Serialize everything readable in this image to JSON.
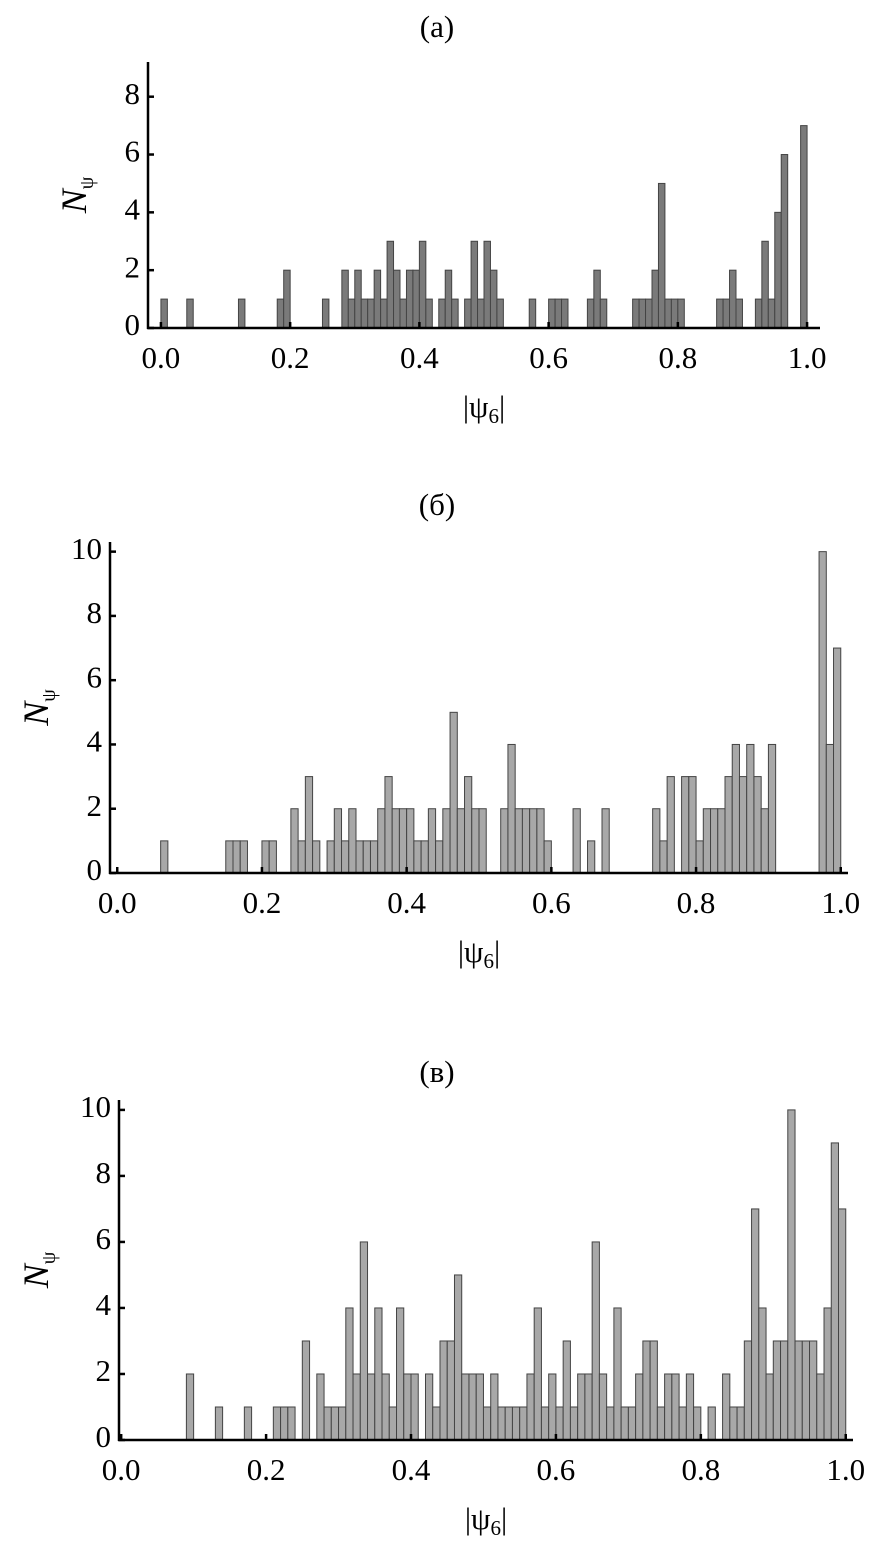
{
  "chart_data": [
    {
      "type": "histogram",
      "title": "(a)",
      "xlabel": "|ψ6|",
      "ylabel": {
        "main": "N",
        "sub": "ψ"
      },
      "color": "#7a7a7a",
      "bins": [
        0,
        0.01,
        0.02,
        0.03,
        0.04,
        0.05,
        0.06,
        0.07,
        0.08,
        0.09,
        0.1,
        0.11,
        0.12,
        0.13,
        0.14,
        0.15,
        0.16,
        0.17,
        0.18,
        0.19,
        0.2,
        0.21,
        0.22,
        0.23,
        0.24,
        0.25,
        0.26,
        0.27,
        0.28,
        0.29,
        0.3,
        0.31,
        0.32,
        0.33,
        0.34,
        0.35,
        0.36,
        0.37,
        0.38,
        0.39,
        0.4,
        0.41,
        0.42,
        0.43,
        0.44,
        0.45,
        0.46,
        0.47,
        0.48,
        0.49,
        0.5,
        0.51,
        0.52,
        0.53,
        0.54,
        0.55,
        0.56,
        0.57,
        0.58,
        0.59,
        0.6,
        0.61,
        0.62,
        0.63,
        0.64,
        0.65,
        0.66,
        0.67,
        0.68,
        0.69,
        0.7,
        0.71,
        0.72,
        0.73,
        0.74,
        0.75,
        0.76,
        0.77,
        0.78,
        0.79,
        0.8,
        0.81,
        0.82,
        0.83,
        0.84,
        0.85,
        0.86,
        0.87,
        0.88,
        0.89,
        0.9,
        0.91,
        0.92,
        0.93,
        0.94,
        0.95,
        0.96,
        0.97,
        0.98,
        0.99,
        1
      ],
      "values": [
        1,
        0,
        0,
        0,
        1,
        0,
        0,
        0,
        0,
        0,
        0,
        0,
        1,
        0,
        0,
        0,
        0,
        0,
        1,
        2,
        0,
        0,
        0,
        0,
        0,
        1,
        0,
        0,
        2,
        1,
        2,
        1,
        1,
        2,
        1,
        3,
        2,
        1,
        2,
        2,
        3,
        1,
        0,
        1,
        2,
        1,
        0,
        1,
        3,
        1,
        3,
        2,
        1,
        0,
        0,
        0,
        0,
        1,
        0,
        0,
        1,
        1,
        1,
        0,
        0,
        0,
        1,
        2,
        1,
        0,
        0,
        0,
        0,
        1,
        1,
        1,
        2,
        5,
        1,
        1,
        1,
        0,
        0,
        0,
        0,
        0,
        1,
        1,
        2,
        1,
        0,
        0,
        1,
        3,
        1,
        4,
        6,
        0,
        0,
        7
      ],
      "xlim": [
        -0.02,
        1.02
      ],
      "ylim": [
        0,
        9.2
      ],
      "xticks": [
        {
          "value": 0,
          "label": "0.0"
        },
        0.2,
        0.4,
        0.6,
        0.8,
        {
          "value": 1,
          "label": "1.0"
        }
      ],
      "yticks": [
        0,
        2,
        4,
        6,
        8
      ]
    },
    {
      "type": "histogram",
      "title": "(б)",
      "xlabel": "|ψ6|",
      "ylabel": {
        "main": "N",
        "sub": "ψ"
      },
      "color": "#a8a8a8",
      "bins": [
        0,
        0.01,
        0.02,
        0.03,
        0.04,
        0.05,
        0.06,
        0.07,
        0.08,
        0.09,
        0.1,
        0.11,
        0.12,
        0.13,
        0.14,
        0.15,
        0.16,
        0.17,
        0.18,
        0.19,
        0.2,
        0.21,
        0.22,
        0.23,
        0.24,
        0.25,
        0.26,
        0.27,
        0.28,
        0.29,
        0.3,
        0.31,
        0.32,
        0.33,
        0.34,
        0.35,
        0.36,
        0.37,
        0.38,
        0.39,
        0.4,
        0.41,
        0.42,
        0.43,
        0.44,
        0.45,
        0.46,
        0.47,
        0.48,
        0.49,
        0.5,
        0.51,
        0.52,
        0.53,
        0.54,
        0.55,
        0.56,
        0.57,
        0.58,
        0.59,
        0.6,
        0.61,
        0.62,
        0.63,
        0.64,
        0.65,
        0.66,
        0.67,
        0.68,
        0.69,
        0.7,
        0.71,
        0.72,
        0.73,
        0.74,
        0.75,
        0.76,
        0.77,
        0.78,
        0.79,
        0.8,
        0.81,
        0.82,
        0.83,
        0.84,
        0.85,
        0.86,
        0.87,
        0.88,
        0.89,
        0.9,
        0.91,
        0.92,
        0.93,
        0.94,
        0.95,
        0.96,
        0.97,
        0.98,
        0.99,
        1
      ],
      "values": [
        0,
        0,
        0,
        0,
        0,
        0,
        1,
        0,
        0,
        0,
        0,
        0,
        0,
        0,
        0,
        1,
        1,
        1,
        0,
        0,
        1,
        1,
        0,
        0,
        2,
        1,
        3,
        1,
        0,
        1,
        2,
        1,
        2,
        1,
        1,
        1,
        2,
        3,
        2,
        2,
        2,
        1,
        1,
        2,
        1,
        2,
        5,
        2,
        3,
        2,
        2,
        0,
        0,
        2,
        4,
        2,
        2,
        2,
        2,
        1,
        0,
        0,
        0,
        2,
        0,
        1,
        0,
        2,
        0,
        0,
        0,
        0,
        0,
        0,
        2,
        1,
        3,
        0,
        3,
        3,
        1,
        2,
        2,
        2,
        3,
        4,
        3,
        4,
        3,
        2,
        4,
        0,
        0,
        0,
        0,
        0,
        0,
        10,
        4,
        7
      ],
      "xlim": [
        -0.01,
        1.01
      ],
      "ylim": [
        0,
        10.3
      ],
      "xticks": [
        {
          "value": 0,
          "label": "0.0"
        },
        0.2,
        0.4,
        0.6,
        0.8,
        {
          "value": 1,
          "label": "1.0"
        }
      ],
      "yticks": [
        0,
        2,
        4,
        6,
        8,
        10
      ]
    },
    {
      "type": "histogram",
      "title": "(в)",
      "xlabel": "|ψ6|",
      "ylabel": {
        "main": "N",
        "sub": "ψ"
      },
      "color": "#a8a8a8",
      "bins": [
        0,
        0.01,
        0.02,
        0.03,
        0.04,
        0.05,
        0.06,
        0.07,
        0.08,
        0.09,
        0.1,
        0.11,
        0.12,
        0.13,
        0.14,
        0.15,
        0.16,
        0.17,
        0.18,
        0.19,
        0.2,
        0.21,
        0.22,
        0.23,
        0.24,
        0.25,
        0.26,
        0.27,
        0.28,
        0.29,
        0.3,
        0.31,
        0.32,
        0.33,
        0.34,
        0.35,
        0.36,
        0.37,
        0.38,
        0.39,
        0.4,
        0.41,
        0.42,
        0.43,
        0.44,
        0.45,
        0.46,
        0.47,
        0.48,
        0.49,
        0.5,
        0.51,
        0.52,
        0.53,
        0.54,
        0.55,
        0.56,
        0.57,
        0.58,
        0.59,
        0.6,
        0.61,
        0.62,
        0.63,
        0.64,
        0.65,
        0.66,
        0.67,
        0.68,
        0.69,
        0.7,
        0.71,
        0.72,
        0.73,
        0.74,
        0.75,
        0.76,
        0.77,
        0.78,
        0.79,
        0.8,
        0.81,
        0.82,
        0.83,
        0.84,
        0.85,
        0.86,
        0.87,
        0.88,
        0.89,
        0.9,
        0.91,
        0.92,
        0.93,
        0.94,
        0.95,
        0.96,
        0.97,
        0.98,
        0.99,
        1
      ],
      "values": [
        0,
        0,
        0,
        0,
        0,
        0,
        0,
        0,
        0,
        2,
        0,
        0,
        0,
        1,
        0,
        0,
        0,
        1,
        0,
        0,
        0,
        1,
        1,
        1,
        0,
        3,
        0,
        2,
        1,
        1,
        1,
        4,
        2,
        6,
        2,
        4,
        2,
        1,
        4,
        2,
        2,
        0,
        2,
        1,
        3,
        3,
        5,
        2,
        2,
        2,
        1,
        2,
        1,
        1,
        1,
        1,
        2,
        4,
        1,
        2,
        1,
        3,
        1,
        2,
        2,
        6,
        2,
        1,
        4,
        1,
        1,
        2,
        3,
        3,
        1,
        2,
        2,
        1,
        2,
        1,
        0,
        1,
        0,
        2,
        1,
        1,
        3,
        7,
        4,
        2,
        3,
        3,
        10,
        3,
        3,
        3,
        2,
        4,
        9,
        7
      ],
      "xlim": [
        -0.003,
        1.01
      ],
      "ylim": [
        0,
        10.3
      ],
      "xticks": [
        {
          "value": 0,
          "label": "0.0"
        },
        0.2,
        0.4,
        0.6,
        0.8,
        {
          "value": 1,
          "label": "1.0"
        }
      ],
      "yticks": [
        0,
        2,
        4,
        6,
        8,
        10
      ]
    }
  ]
}
